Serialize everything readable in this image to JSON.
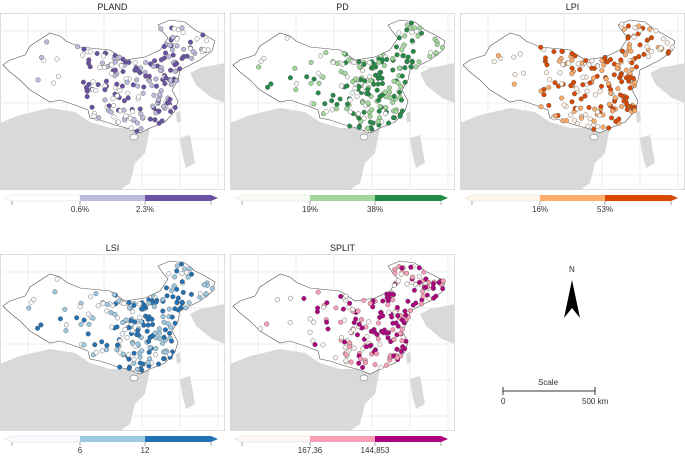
{
  "panels": [
    {
      "title": "PLAND",
      "labels": [
        "0.6%",
        "2.3%"
      ],
      "colors": [
        "#ffffff",
        "#bcbddc",
        "#6a51a3"
      ]
    },
    {
      "title": "PD",
      "labels": [
        "19%",
        "38%"
      ],
      "colors": [
        "#f7fcf5",
        "#a1d99b",
        "#238b45"
      ]
    },
    {
      "title": "LPI",
      "labels": [
        "16%",
        "53%"
      ],
      "colors": [
        "#fff5eb",
        "#fdae6b",
        "#d94801"
      ]
    },
    {
      "title": "LSI",
      "labels": [
        "6",
        "12"
      ],
      "colors": [
        "#f7fbff",
        "#9ecae1",
        "#2171b5"
      ]
    },
    {
      "title": "SPLIT",
      "labels": [
        "167,36",
        "144,853"
      ],
      "colors": [
        "#fff7f3",
        "#fa9fb5",
        "#ae017e"
      ]
    }
  ],
  "north_arrow": {
    "label": "N",
    "icon": "north-arrow-icon"
  },
  "scale_bar": {
    "title": "Scale",
    "start": "0",
    "end": "500 km"
  },
  "map_colors": {
    "neighbor_land": "#d9d9d9",
    "outline": "#555555",
    "grid": "#eeeeee"
  }
}
